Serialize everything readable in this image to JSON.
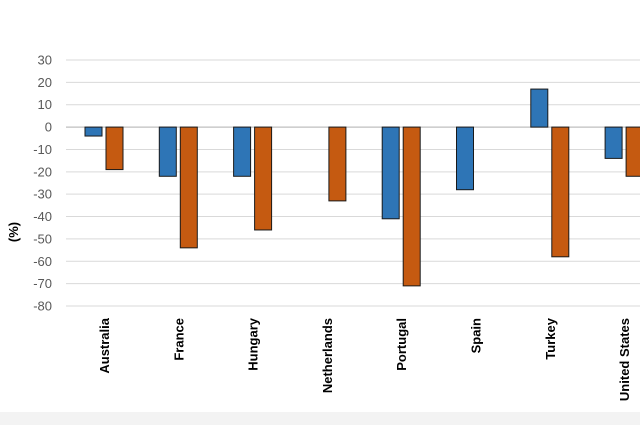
{
  "chart_data": {
    "type": "bar",
    "title": "",
    "xlabel": "",
    "ylabel": "(%)",
    "ylim": [
      -80,
      30
    ],
    "yticks": [
      30,
      20,
      10,
      0,
      -10,
      -20,
      -30,
      -40,
      -50,
      -60,
      -70,
      -80
    ],
    "grid": true,
    "legend": "none",
    "categories": [
      "Australia",
      "France",
      "Hungary",
      "Netherlands",
      "Portugal",
      "Spain",
      "Turkey",
      "United States"
    ],
    "series": [
      {
        "color": "#2e75b6",
        "values": [
          -4,
          -22,
          -22,
          null,
          -41,
          -28,
          17,
          -14
        ]
      },
      {
        "color": "#c55a11",
        "values": [
          -19,
          -54,
          -46,
          -33,
          -71,
          null,
          -58,
          -22
        ]
      }
    ]
  }
}
